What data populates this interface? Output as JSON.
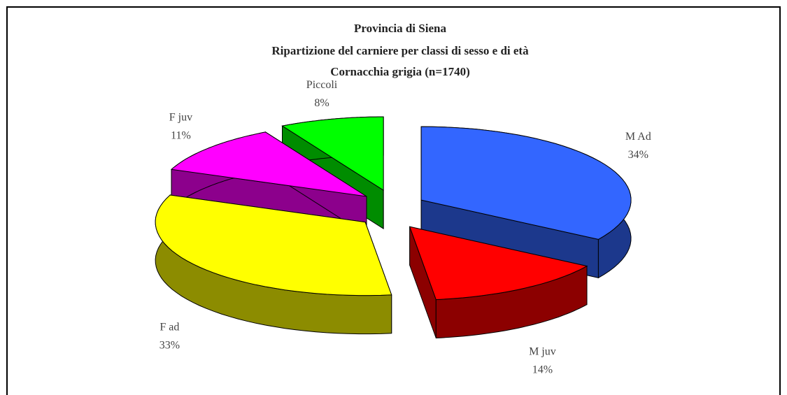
{
  "chart_data": {
    "type": "pie3d",
    "title": "Provincia di Siena",
    "subtitle": "Ripartizione del carniere per classi di sesso e di età",
    "subtitle2": "Cornacchia grigia (n=1740)",
    "categories": [
      "M Ad",
      "M juv",
      "F ad",
      "F juv",
      "Piccoli"
    ],
    "values": [
      34,
      14,
      33,
      11,
      8
    ],
    "value_labels": [
      "34%",
      "14%",
      "33%",
      "11%",
      "8%"
    ],
    "colors": [
      "#3366ff",
      "#ff0000",
      "#ffff00",
      "#ff00ff",
      "#00ff00"
    ]
  }
}
